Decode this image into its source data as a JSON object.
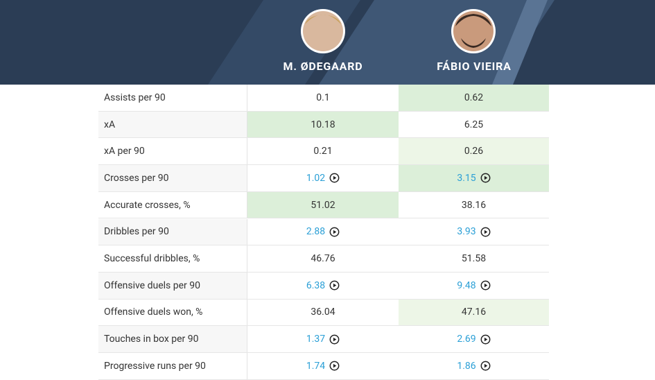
{
  "header": {
    "players": [
      "M. ØDEGAARD",
      "FÁBIO VIEIRA"
    ]
  },
  "table": {
    "rows": [
      [
        "Assists per 90",
        "0.1",
        "0.62"
      ],
      [
        "xA",
        "10.18",
        "6.25"
      ],
      [
        "xA per 90",
        "0.21",
        "0.26"
      ],
      [
        "Crosses per 90",
        "1.02",
        "3.15"
      ],
      [
        "Accurate crosses, %",
        "51.02",
        "38.16"
      ],
      [
        "Dribbles per 90",
        "2.88",
        "3.93"
      ],
      [
        "Successful dribbles, %",
        "46.76",
        "51.58"
      ],
      [
        "Offensive duels per 90",
        "6.38",
        "9.48"
      ],
      [
        "Offensive duels won, %",
        "36.04",
        "47.16"
      ],
      [
        "Touches in box per 90",
        "1.37",
        "2.69"
      ],
      [
        "Progressive runs per 90",
        "1.74",
        "1.86"
      ]
    ]
  }
}
